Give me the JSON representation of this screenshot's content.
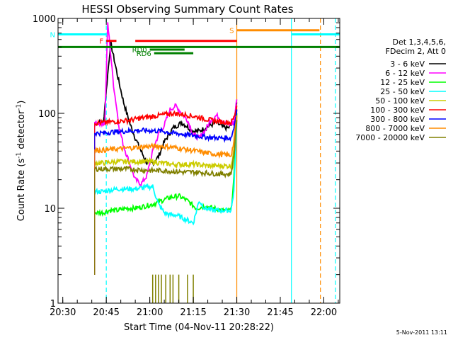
{
  "chart_data": {
    "type": "line",
    "title": "HESSI Observing Summary Count Rates",
    "xlabel": "Start Time (04-Nov-11 20:28:22)",
    "ylabel": "Count Rate (s",
    "ylabel_sup1": "-1",
    "ylabel_mid": " detector",
    "ylabel_sup2": "-1",
    "ylabel_end": ")",
    "y_scale": "log",
    "ylim": [
      1,
      1000
    ],
    "xlim": [
      "20:28:22",
      "22:05:30"
    ],
    "x_ticks": [
      "20:30",
      "20:45",
      "21:00",
      "21:15",
      "21:30",
      "21:45",
      "22:00"
    ],
    "y_ticks": [
      "1",
      "10",
      "100",
      "1000"
    ],
    "legend_title": [
      "Det 1,3,4,5,6,",
      "FDecim 2, Att 0"
    ],
    "legend_placement": "right",
    "footer_date": "5-Nov-2011 13:11",
    "series": [
      {
        "name": "3 - 6 keV",
        "color": "#000000",
        "x": [
          "20:41:00",
          "20:44:00",
          "20:46:30",
          "20:49:00",
          "20:51:00",
          "20:53:00",
          "20:55:00",
          "20:57:00",
          "20:59:00",
          "21:01:00",
          "21:03:00",
          "21:05:00",
          "21:08:00",
          "21:11:00",
          "21:15:00",
          "21:17:00",
          "21:19:00",
          "21:21:00",
          "21:23:00",
          "21:25:00",
          "21:27:00",
          "21:29:00",
          "21:30:00"
        ],
        "values": [
          80,
          80,
          560,
          240,
          130,
          80,
          55,
          40,
          30,
          30,
          35,
          50,
          70,
          80,
          65,
          65,
          70,
          75,
          80,
          72,
          70,
          80,
          130
        ]
      },
      {
        "name": "6 - 12 keV",
        "color": "#ff00ff",
        "x": [
          "20:41:00",
          "20:44:30",
          "20:45:30",
          "20:47:30",
          "20:49:30",
          "20:51:00",
          "20:53:00",
          "20:55:00",
          "20:57:00",
          "20:59:00",
          "21:01:00",
          "21:03:00",
          "21:05:00",
          "21:07:00",
          "21:09:00",
          "21:11:00",
          "21:13:00",
          "21:15:00",
          "21:17:00",
          "21:19:00",
          "21:21:00",
          "21:23:00",
          "21:25:00",
          "21:27:00",
          "21:29:00",
          "21:30:00"
        ],
        "values": [
          80,
          78,
          900,
          200,
          70,
          45,
          30,
          20,
          18,
          22,
          40,
          60,
          75,
          110,
          120,
          100,
          85,
          60,
          55,
          65,
          85,
          95,
          85,
          75,
          80,
          140
        ]
      },
      {
        "name": "12 - 25 keV",
        "color": "#00ff00",
        "x": [
          "20:41:00",
          "20:44:00",
          "20:46:00",
          "20:49:00",
          "20:52:00",
          "20:55:00",
          "20:58:00",
          "21:01:00",
          "21:04:00",
          "21:07:00",
          "21:10:00",
          "21:13:00",
          "21:16:00",
          "21:19:00",
          "21:22:00",
          "21:25:00",
          "21:28:00",
          "21:29:00",
          "21:30:00"
        ],
        "values": [
          9,
          9,
          9.5,
          9.5,
          10,
          10,
          10.5,
          11,
          12,
          13,
          13.5,
          12,
          10,
          10.5,
          10,
          9.5,
          9.5,
          20,
          100
        ]
      },
      {
        "name": "25 - 50 keV",
        "color": "#00ffff",
        "x": [
          "20:41:00",
          "20:44:00",
          "20:46:00",
          "20:49:00",
          "20:52:00",
          "20:55:00",
          "20:58:00",
          "21:01:00",
          "21:03:00",
          "21:05:00",
          "21:07:00",
          "21:09:00",
          "21:11:00",
          "21:13:00",
          "21:15:00",
          "21:17:00",
          "21:19:00",
          "21:22:00",
          "21:25:00",
          "21:28:00",
          "21:29:00",
          "21:30:00"
        ],
        "values": [
          15,
          15,
          15.5,
          16,
          16,
          16,
          16.5,
          17,
          11,
          9,
          8.5,
          8.5,
          8,
          7.5,
          7,
          12,
          10,
          9.5,
          9.5,
          9.5,
          15,
          80
        ]
      },
      {
        "name": "50 - 100 keV",
        "color": "#cccc00",
        "x": [
          "20:41:00",
          "20:44:00",
          "20:48:00",
          "20:52:00",
          "20:56:00",
          "21:00:00",
          "21:04:00",
          "21:08:00",
          "21:12:00",
          "21:16:00",
          "21:20:00",
          "21:24:00",
          "21:28:00",
          "21:29:00",
          "21:30:00"
        ],
        "values": [
          30,
          30,
          31,
          31,
          31,
          31,
          30,
          29,
          29,
          29,
          28,
          28,
          28,
          40,
          90
        ]
      },
      {
        "name": "100 - 300 keV",
        "color": "#ff0000",
        "x": [
          "20:41:00",
          "20:44:00",
          "20:48:00",
          "20:52:00",
          "20:56:00",
          "21:00:00",
          "21:04:00",
          "21:08:00",
          "21:12:00",
          "21:16:00",
          "21:20:00",
          "21:24:00",
          "21:28:00",
          "21:29:00",
          "21:30:00"
        ],
        "values": [
          79,
          80,
          82,
          84,
          88,
          92,
          96,
          100,
          97,
          92,
          86,
          82,
          80,
          90,
          120
        ]
      },
      {
        "name": "300 - 800 keV",
        "color": "#0000ff",
        "x": [
          "20:41:00",
          "20:44:00",
          "20:48:00",
          "20:52:00",
          "20:56:00",
          "21:00:00",
          "21:04:00",
          "21:08:00",
          "21:12:00",
          "21:16:00",
          "21:20:00",
          "21:24:00",
          "21:28:00",
          "21:29:00",
          "21:30:00"
        ],
        "values": [
          62,
          62,
          64,
          65,
          66,
          66,
          65,
          62,
          60,
          58,
          56,
          55,
          55,
          70,
          110
        ]
      },
      {
        "name": "800 - 7000 keV",
        "color": "#ff8c00",
        "x": [
          "20:41:00",
          "20:44:00",
          "20:48:00",
          "20:52:00",
          "20:56:00",
          "21:00:00",
          "21:04:00",
          "21:08:00",
          "21:12:00",
          "21:16:00",
          "21:20:00",
          "21:24:00",
          "21:28:00",
          "21:29:00",
          "21:30:00"
        ],
        "values": [
          41,
          41,
          42,
          43,
          44,
          45,
          45,
          44,
          42,
          40,
          38,
          37,
          36,
          50,
          95
        ]
      },
      {
        "name": "7000 - 20000 keV",
        "color": "#808000",
        "x": [
          "20:41:00",
          "20:44:00",
          "20:48:00",
          "20:52:00",
          "20:56:00",
          "21:00:00",
          "21:04:00",
          "21:08:00",
          "21:12:00",
          "21:16:00",
          "21:20:00",
          "21:24:00",
          "21:28:00",
          "21:29:00",
          "21:30:00"
        ],
        "values": [
          26,
          26,
          26,
          26,
          25.5,
          25,
          25,
          24.5,
          24,
          24,
          23.5,
          23,
          23,
          35,
          85
        ]
      }
    ],
    "flag_bars": [
      {
        "label": "N",
        "color": "#00ffff",
        "y": 680,
        "start": "20:28:22",
        "end": "20:45:10"
      },
      {
        "label": "",
        "color": "#00ffff",
        "y": 680,
        "start": "21:49:00",
        "end": "22:05:30"
      },
      {
        "label": "S",
        "color": "#ff8c00",
        "y": 750,
        "start": "21:30:00",
        "end": "21:58:30"
      },
      {
        "label": "F",
        "color": "#ff0000",
        "y": 580,
        "start": "20:45:00",
        "end": "20:48:30"
      },
      {
        "label": "",
        "color": "#ff0000",
        "y": 580,
        "start": "20:55:00",
        "end": "21:30:00"
      },
      {
        "label": "",
        "color": "#008000",
        "y": 500,
        "start": "20:28:22",
        "end": "22:05:30"
      },
      {
        "label": "RD0",
        "color": "#008000",
        "y": 470,
        "start": "21:00:00",
        "end": "21:12:00"
      },
      {
        "label": "RD6",
        "color": "#008000",
        "y": 430,
        "start": "21:01:30",
        "end": "21:15:00"
      }
    ],
    "vertical_lines": [
      {
        "time": "20:45:00",
        "color": "#00ffff",
        "style": "dashed"
      },
      {
        "time": "21:30:00",
        "color": "#ff8c00",
        "style": "solid"
      },
      {
        "time": "21:48:50",
        "color": "#00ffff",
        "style": "solid"
      },
      {
        "time": "21:58:50",
        "color": "#ff8c00",
        "style": "dashed"
      },
      {
        "time": "22:04:00",
        "color": "#00ffff",
        "style": "dashed"
      }
    ],
    "spikes_7000": [
      "21:01:00",
      "21:02:00",
      "21:03:00",
      "21:04:00",
      "21:05:30",
      "21:07:00",
      "21:08:00",
      "21:10:00",
      "21:13:00",
      "21:15:00"
    ]
  }
}
